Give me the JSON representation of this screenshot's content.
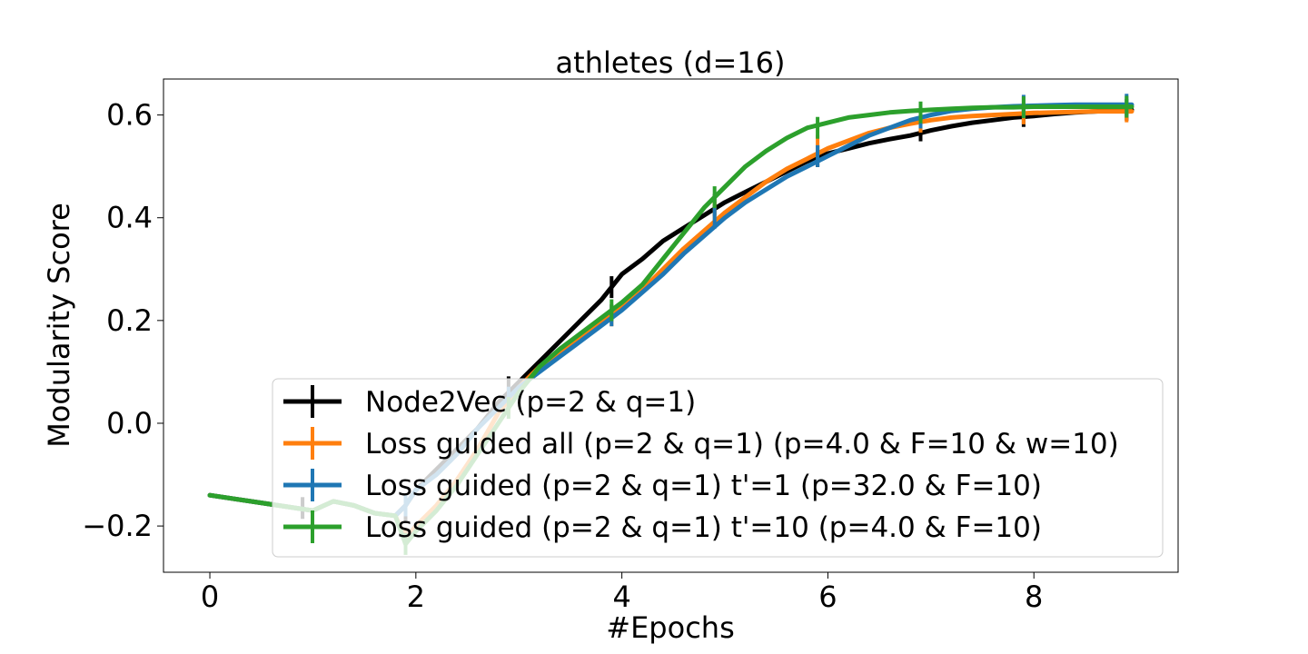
{
  "chart_data": {
    "type": "line",
    "title": "athletes (d=16)",
    "xlabel": "#Epochs",
    "ylabel": "Modularity Score",
    "xlim": [
      -0.45,
      9.4
    ],
    "ylim": [
      -0.29,
      0.67
    ],
    "xticks": [
      0,
      2,
      4,
      6,
      8
    ],
    "xtick_labels": [
      "0",
      "2",
      "4",
      "6",
      "8"
    ],
    "yticks": [
      -0.2,
      0.0,
      0.2,
      0.4,
      0.6
    ],
    "ytick_labels": [
      "−0.2",
      "0.0",
      "0.2",
      "0.4",
      "0.6"
    ],
    "grid": false,
    "legend_position": "lower-right",
    "series": [
      {
        "name": "Node2Vec (p=2 & q=1)",
        "color": "#000000",
        "x": [
          0,
          0.5,
          1.0,
          1.2,
          1.4,
          1.6,
          1.8,
          1.9,
          2.0,
          2.2,
          2.4,
          2.6,
          2.8,
          3.0,
          3.2,
          3.4,
          3.6,
          3.8,
          3.9,
          4.0,
          4.2,
          4.4,
          4.6,
          4.8,
          5.0,
          5.2,
          5.4,
          5.6,
          5.8,
          6.0,
          6.2,
          6.4,
          6.6,
          6.8,
          7.0,
          7.2,
          7.4,
          7.6,
          7.8,
          8.0,
          8.2,
          8.4,
          8.6,
          8.8,
          8.95
        ],
        "y": [
          -0.14,
          -0.155,
          -0.17,
          -0.152,
          -0.16,
          -0.175,
          -0.18,
          -0.16,
          -0.13,
          -0.09,
          -0.05,
          -0.01,
          0.04,
          0.08,
          0.12,
          0.16,
          0.2,
          0.24,
          0.265,
          0.29,
          0.32,
          0.355,
          0.38,
          0.405,
          0.43,
          0.45,
          0.47,
          0.49,
          0.51,
          0.525,
          0.535,
          0.545,
          0.553,
          0.56,
          0.57,
          0.578,
          0.585,
          0.59,
          0.595,
          0.598,
          0.602,
          0.605,
          0.607,
          0.609,
          0.61
        ],
        "err_x": [
          0.9,
          1.9,
          2.9,
          3.9,
          4.9,
          5.9,
          6.9,
          7.9,
          8.9
        ],
        "err_y": [
          -0.165,
          -0.17,
          0.07,
          0.265,
          0.425,
          0.52,
          0.57,
          0.598,
          0.61
        ]
      },
      {
        "name": "Loss guided all (p=2 & q=1)  (p=4.0 & F=10 & w=10)",
        "color": "#ff7f0e",
        "x": [
          0,
          0.5,
          1.0,
          1.2,
          1.4,
          1.6,
          1.8,
          1.9,
          2.0,
          2.2,
          2.4,
          2.6,
          2.8,
          3.0,
          3.2,
          3.4,
          3.6,
          3.8,
          4.0,
          4.2,
          4.4,
          4.6,
          4.8,
          5.0,
          5.2,
          5.4,
          5.6,
          5.8,
          6.0,
          6.2,
          6.4,
          6.6,
          6.8,
          7.0,
          7.2,
          7.4,
          7.6,
          7.8,
          8.0,
          8.2,
          8.4,
          8.6,
          8.8,
          8.95
        ],
        "y": [
          -0.14,
          -0.155,
          -0.17,
          -0.152,
          -0.16,
          -0.175,
          -0.18,
          -0.225,
          -0.2,
          -0.16,
          -0.11,
          -0.05,
          0.02,
          0.07,
          0.11,
          0.14,
          0.17,
          0.2,
          0.23,
          0.26,
          0.3,
          0.34,
          0.375,
          0.41,
          0.44,
          0.47,
          0.495,
          0.515,
          0.535,
          0.55,
          0.565,
          0.575,
          0.583,
          0.59,
          0.595,
          0.598,
          0.6,
          0.602,
          0.604,
          0.605,
          0.606,
          0.607,
          0.607,
          0.607
        ],
        "err_x": [
          1.9,
          2.9,
          3.9,
          4.9,
          5.9,
          6.9,
          7.9,
          8.9
        ],
        "err_y": [
          -0.225,
          0.04,
          0.21,
          0.41,
          0.54,
          0.587,
          0.603,
          0.607
        ]
      },
      {
        "name": "Loss guided  (p=2 & q=1)  t'=1  (p=32.0 & F=10)",
        "color": "#1f77b4",
        "x": [
          0,
          0.5,
          1.0,
          1.2,
          1.4,
          1.6,
          1.8,
          1.9,
          2.0,
          2.2,
          2.4,
          2.6,
          2.8,
          3.0,
          3.2,
          3.4,
          3.6,
          3.8,
          4.0,
          4.2,
          4.4,
          4.6,
          4.8,
          5.0,
          5.2,
          5.4,
          5.6,
          5.8,
          6.0,
          6.2,
          6.4,
          6.6,
          6.8,
          7.0,
          7.2,
          7.4,
          7.6,
          7.8,
          8.0,
          8.2,
          8.4,
          8.6,
          8.8,
          8.95
        ],
        "y": [
          -0.14,
          -0.155,
          -0.17,
          -0.152,
          -0.16,
          -0.175,
          -0.18,
          -0.16,
          -0.13,
          -0.1,
          -0.06,
          -0.01,
          0.03,
          0.07,
          0.1,
          0.13,
          0.16,
          0.19,
          0.22,
          0.255,
          0.29,
          0.33,
          0.365,
          0.4,
          0.43,
          0.455,
          0.48,
          0.5,
          0.52,
          0.54,
          0.56,
          0.575,
          0.59,
          0.6,
          0.608,
          0.612,
          0.615,
          0.617,
          0.618,
          0.619,
          0.62,
          0.62,
          0.62,
          0.62
        ],
        "err_x": [
          1.9,
          2.9,
          3.9,
          4.9,
          5.9,
          6.9,
          7.9,
          8.9
        ],
        "err_y": [
          -0.16,
          0.05,
          0.21,
          0.4,
          0.52,
          0.595,
          0.618,
          0.62
        ]
      },
      {
        "name": "Loss guided  (p=2 & q=1)  t'=10  (p=4.0 & F=10)",
        "color": "#2ca02c",
        "x": [
          0,
          0.5,
          1.0,
          1.2,
          1.4,
          1.6,
          1.8,
          1.9,
          2.0,
          2.2,
          2.4,
          2.6,
          2.8,
          3.0,
          3.2,
          3.4,
          3.6,
          3.8,
          4.0,
          4.2,
          4.4,
          4.6,
          4.8,
          5.0,
          5.2,
          5.4,
          5.6,
          5.8,
          6.0,
          6.2,
          6.4,
          6.6,
          6.8,
          7.0,
          7.2,
          7.4,
          7.6,
          7.8,
          8.0,
          8.2,
          8.4,
          8.6,
          8.8,
          8.95
        ],
        "y": [
          -0.14,
          -0.155,
          -0.17,
          -0.152,
          -0.16,
          -0.175,
          -0.18,
          -0.235,
          -0.21,
          -0.17,
          -0.12,
          -0.06,
          0.0,
          0.06,
          0.11,
          0.145,
          0.175,
          0.205,
          0.235,
          0.27,
          0.32,
          0.37,
          0.42,
          0.46,
          0.5,
          0.53,
          0.555,
          0.575,
          0.585,
          0.595,
          0.6,
          0.605,
          0.608,
          0.61,
          0.612,
          0.614,
          0.615,
          0.615,
          0.616,
          0.616,
          0.616,
          0.616,
          0.616,
          0.616
        ],
        "err_x": [
          1.9,
          2.9,
          3.9,
          4.9,
          5.9,
          6.9,
          7.9,
          8.9
        ],
        "err_y": [
          -0.235,
          0.03,
          0.22,
          0.44,
          0.575,
          0.605,
          0.615,
          0.616
        ]
      }
    ]
  }
}
